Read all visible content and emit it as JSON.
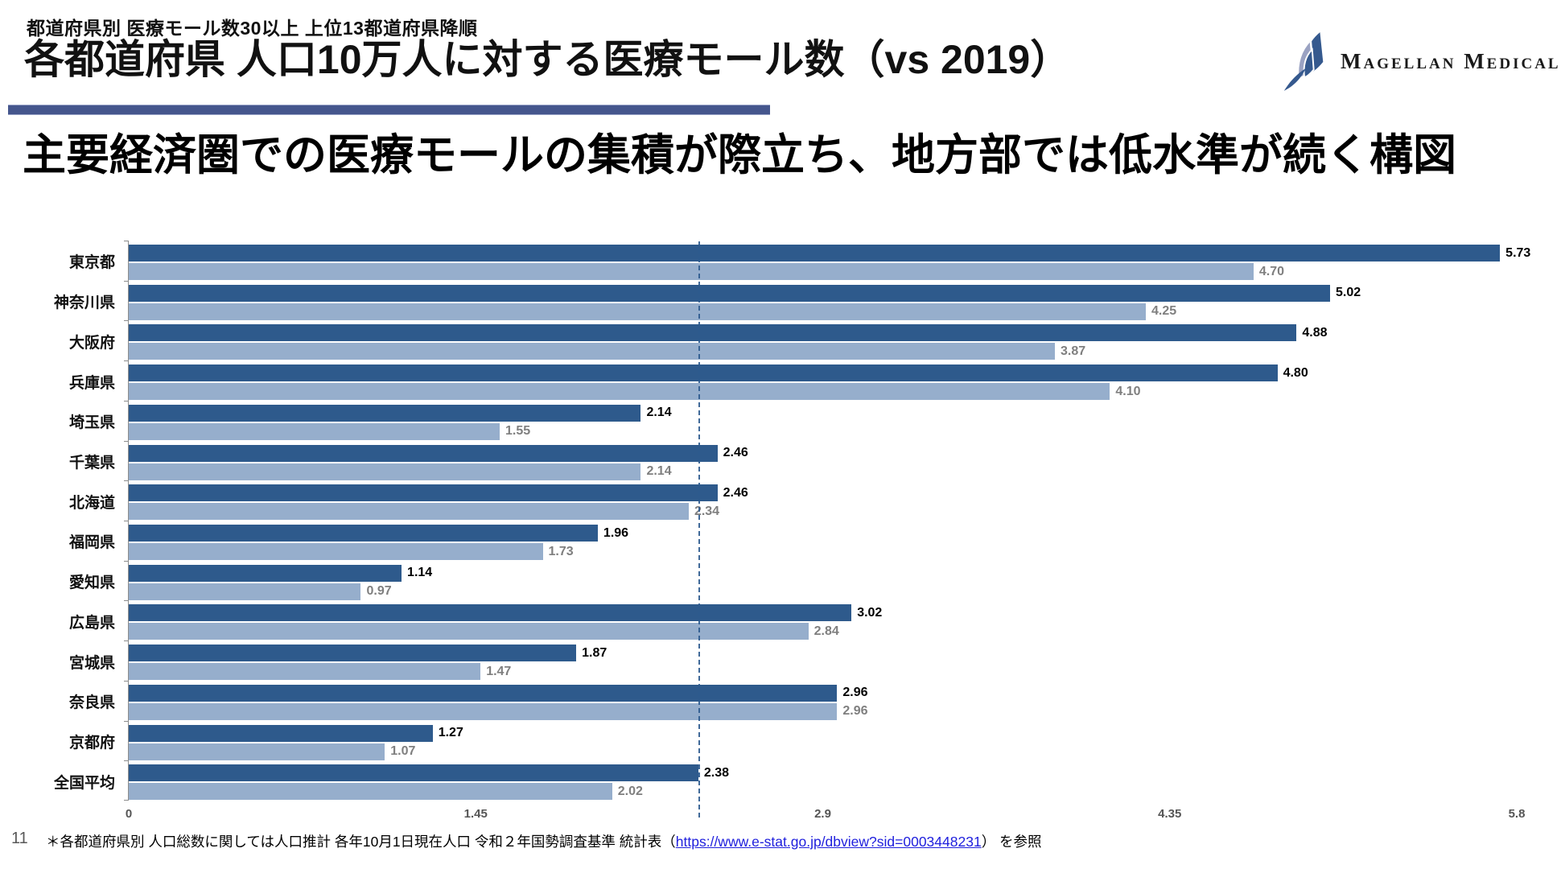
{
  "header": {
    "eyebrow": "都道府県別 医療モール数30以上 上位13都道府県降順",
    "title": "各都道府県 人口10万人に対する医療モール数（vs 2019）",
    "logo_text": "Magellan Medical"
  },
  "subtitle": "主要経済圏での医療モールの集積が際立ち、地方部では低水準が続く構図",
  "chart_data": {
    "type": "bar",
    "orientation": "horizontal",
    "categories": [
      "東京都",
      "神奈川県",
      "大阪府",
      "兵庫県",
      "埼玉県",
      "千葉県",
      "北海道",
      "福岡県",
      "愛知県",
      "広島県",
      "宮城県",
      "奈良県",
      "京都府",
      "全国平均"
    ],
    "series": [
      {
        "id": "dark-current",
        "color": "#2E5A8C",
        "label_color": "#000000",
        "values": [
          5.73,
          5.02,
          4.88,
          4.8,
          2.14,
          2.46,
          2.46,
          1.96,
          1.14,
          3.02,
          1.87,
          2.96,
          1.27,
          2.38
        ]
      },
      {
        "id": "light-2019",
        "color": "#96AECC",
        "label_color": "#7F7F7F",
        "values": [
          4.7,
          4.25,
          3.87,
          4.1,
          1.55,
          2.14,
          2.34,
          1.73,
          0.97,
          2.84,
          1.47,
          2.96,
          1.07,
          2.02
        ]
      }
    ],
    "value_label_decimals": 2,
    "xlim": [
      0,
      5.8
    ],
    "xticks": [
      0,
      1.45,
      2.9,
      4.35,
      5.8
    ],
    "grid": false,
    "legend": false,
    "average_line": {
      "value": 2.38,
      "style": "dashed",
      "color": "#2D5A8E"
    }
  },
  "footer": {
    "page_number": "11",
    "note_prefix": "＊各都道府県別 人口総数に関しては人口推計 各年10月1日現在人口 令和２年国勢調査基準 統計表（",
    "link": "https://www.e-stat.go.jp/dbview?sid=0003448231",
    "note_suffix": "） を参照"
  },
  "colors": {
    "bar_dark": "#2E5A8C",
    "bar_light": "#96AECC",
    "divider": "#45568D",
    "logo_sail_dark": "#35598E",
    "logo_sail_light": "#9AA2C2",
    "link": "#2020DD"
  }
}
